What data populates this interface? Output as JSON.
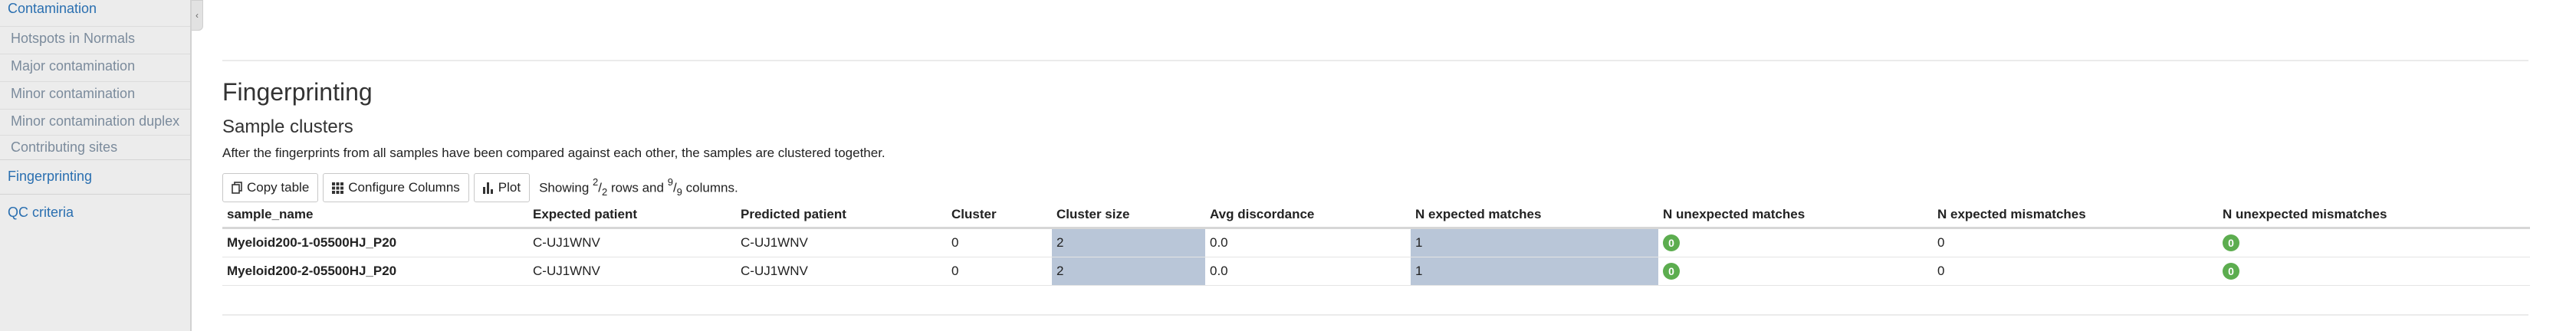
{
  "sidebar": {
    "items": [
      {
        "label": "Contamination",
        "level": "top"
      },
      {
        "label": "Hotspots in Normals",
        "level": "sub"
      },
      {
        "label": "Major contamination",
        "level": "sub"
      },
      {
        "label": "Minor contamination",
        "level": "sub"
      },
      {
        "label": "Minor contamination duplex",
        "level": "sub"
      },
      {
        "label": "Contributing sites",
        "level": "sub"
      },
      {
        "label": "Fingerprinting",
        "level": "top"
      },
      {
        "label": "QC criteria",
        "level": "top"
      }
    ],
    "collapse_icon": "chevron-left-icon"
  },
  "section": {
    "title": "Fingerprinting",
    "subtitle": "Sample clusters",
    "description": "After the fingerprints from all samples have been compared against each other, the samples are clustered together."
  },
  "toolbar": {
    "copy_label": "Copy table",
    "configure_label": "Configure Columns",
    "plot_label": "Plot",
    "showing_prefix": "Showing",
    "rows_shown": "2",
    "rows_total": "2",
    "rows_word": "rows and",
    "cols_shown": "9",
    "cols_total": "9",
    "cols_word": "columns."
  },
  "table": {
    "headers": [
      "sample_name",
      "Expected patient",
      "Predicted patient",
      "Cluster",
      "Cluster size",
      "Avg discordance",
      "N expected matches",
      "N unexpected matches",
      "N expected mismatches",
      "N unexpected mismatches"
    ],
    "rows": [
      [
        "Myeloid200-1-05500HJ_P20",
        "C-UJ1WNV",
        "C-UJ1WNV",
        "0",
        "2",
        "0.0",
        "1",
        "0",
        "0",
        "0"
      ],
      [
        "Myeloid200-2-05500HJ_P20",
        "C-UJ1WNV",
        "C-UJ1WNV",
        "0",
        "2",
        "0.0",
        "1",
        "0",
        "0",
        "0"
      ]
    ],
    "highlight_color": "#b9c6d8",
    "badge_color": "#5cad4f"
  }
}
